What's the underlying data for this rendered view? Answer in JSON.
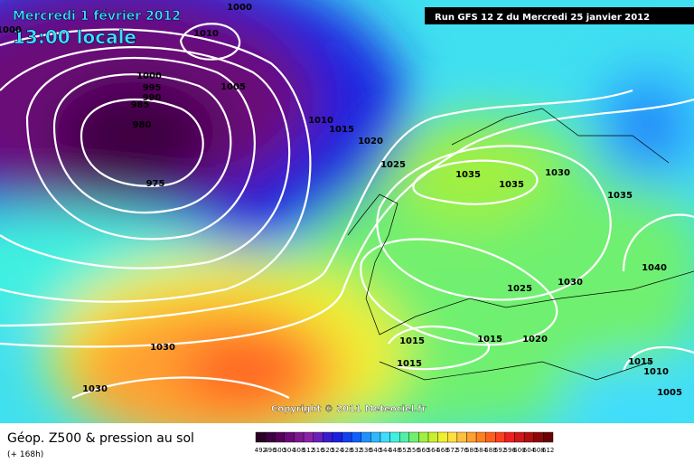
{
  "header": {
    "date": "Mercredi 1 février 2012",
    "time": "13:00 locale",
    "run": "Run GFS 12 Z du Mercredi 25 janvier 2012",
    "copyright": "Copyright © 2011 Meteociel.fr"
  },
  "footer": {
    "title": "Géop. Z500 & pression au sol",
    "lead": "(+ 168h)"
  },
  "legend": {
    "labels": [
      "492",
      "496",
      "500",
      "504",
      "508",
      "512",
      "516",
      "520",
      "524",
      "528",
      "532",
      "536",
      "540",
      "544",
      "548",
      "552",
      "556",
      "560",
      "564",
      "568",
      "572",
      "576",
      "580",
      "584",
      "588",
      "592",
      "596",
      "600",
      "604",
      "608",
      "612"
    ],
    "colors": [
      "#2a0025",
      "#3c0040",
      "#55005a",
      "#6a0a78",
      "#7d1890",
      "#8c22a8",
      "#6a20b8",
      "#3a1ccc",
      "#1a20e0",
      "#1040f0",
      "#1060ff",
      "#2090ff",
      "#30b8ff",
      "#40dcff",
      "#40f0e0",
      "#50f0a8",
      "#70f070",
      "#a0f040",
      "#c8f030",
      "#f0f030",
      "#ffe040",
      "#ffc040",
      "#ffa030",
      "#ff8020",
      "#ff6020",
      "#ff4020",
      "#f02020",
      "#d01818",
      "#b01010",
      "#8c0808",
      "#6a0404"
    ]
  },
  "isobars": [
    "1000",
    "1000",
    "1010",
    "1000",
    "995",
    "990",
    "985",
    "1005",
    "980",
    "975",
    "1010",
    "1015",
    "1020",
    "1025",
    "1035",
    "1035",
    "1030",
    "1035",
    "1040",
    "1025",
    "1030",
    "1015",
    "1015",
    "1020",
    "1015",
    "1030",
    "1030",
    "1015",
    "1010",
    "1005"
  ]
}
